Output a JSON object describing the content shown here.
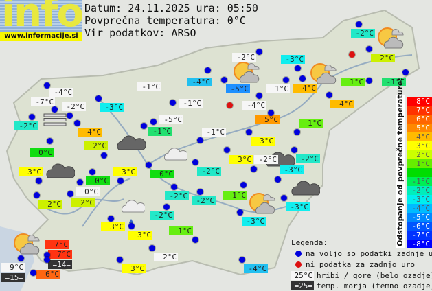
{
  "logo": {
    "word": "info",
    "url": "www.informacije.si"
  },
  "header": {
    "date_line": "Datum: 24.11.2025 ura: 05:50",
    "avg_line": "Povprečna temperatura: 0°C",
    "source_line": "Vir podatkov: ARSO"
  },
  "stations": [
    {
      "temp": "-2°C",
      "bg": "#22e8c8"
    },
    {
      "temp": "2°C",
      "bg": "#ccf000"
    },
    {
      "temp": "-2°C",
      "bg": "#f6f6f6"
    },
    {
      "temp": "-4°C",
      "bg": "#22c0f0"
    },
    {
      "temp": "-5°C",
      "bg": "#1e90ff"
    },
    {
      "temp": "-3°C",
      "bg": "#11eeee"
    },
    {
      "temp": "1°C",
      "bg": "#f6f6f6"
    },
    {
      "temp": "4°C",
      "bg": "#ffbb00"
    },
    {
      "temp": "4°C",
      "bg": "#ffbb00"
    },
    {
      "temp": "1°C",
      "bg": "#66ee11"
    },
    {
      "temp": "-1°C",
      "bg": "#22e070"
    },
    {
      "temp": "-4°C",
      "bg": "#f6f6f6"
    },
    {
      "temp": "5°C",
      "bg": "#ff9900"
    },
    {
      "temp": "1°C",
      "bg": "#66ee11"
    },
    {
      "temp": "-1°C",
      "bg": "#f6f6f6"
    },
    {
      "temp": "3°C",
      "bg": "#ffff00"
    },
    {
      "temp": "3°C",
      "bg": "#ffff00"
    },
    {
      "temp": "-2°C",
      "bg": "#f6f6f6"
    },
    {
      "temp": "-2°C",
      "bg": "#22e8c8"
    },
    {
      "temp": "-4°C",
      "bg": "#f6f6f6"
    },
    {
      "temp": "-7°C",
      "bg": "#f6f6f6"
    },
    {
      "temp": "-2°C",
      "bg": "#f6f6f6"
    },
    {
      "temp": "-3°C",
      "bg": "#11eeee"
    },
    {
      "temp": "-2°C",
      "bg": "#22e8c8"
    },
    {
      "temp": "4°C",
      "bg": "#ffbb00"
    },
    {
      "temp": "0°C",
      "bg": "#11dd11"
    },
    {
      "temp": "2°C",
      "bg": "#ccf000"
    },
    {
      "temp": "-1°C",
      "bg": "#f6f6f6"
    },
    {
      "temp": "-5°C",
      "bg": "#f6f6f6"
    },
    {
      "temp": "-1°C",
      "bg": "#22e070"
    },
    {
      "temp": "3°C",
      "bg": "#ffff00"
    },
    {
      "temp": "0°C",
      "bg": "#11dd11"
    },
    {
      "temp": "3°C",
      "bg": "#ffff00"
    },
    {
      "temp": "0°C",
      "bg": "#11dd11"
    },
    {
      "temp": "-2°C",
      "bg": "#22e8c8"
    },
    {
      "temp": "0°C",
      "bg": "#f6f6f6"
    },
    {
      "temp": "2°C",
      "bg": "#ccf000"
    },
    {
      "temp": "2°C",
      "bg": "#ccf000"
    },
    {
      "temp": "-2°C",
      "bg": "#22e8c8"
    },
    {
      "temp": "-2°C",
      "bg": "#22e8c8"
    },
    {
      "temp": "-3°C",
      "bg": "#11eeee"
    },
    {
      "temp": "1°C",
      "bg": "#66ee11"
    },
    {
      "temp": "-3°C",
      "bg": "#11eeee"
    },
    {
      "temp": "-3°C",
      "bg": "#11eeee"
    },
    {
      "temp": "-2°C",
      "bg": "#22e8c8"
    },
    {
      "temp": "3°C",
      "bg": "#ffff00"
    },
    {
      "temp": "3°C",
      "bg": "#ffff00"
    },
    {
      "temp": "1°C",
      "bg": "#66ee11"
    },
    {
      "temp": "2°C",
      "bg": "#f6f6f6"
    },
    {
      "temp": "7°C",
      "bg": "#ff3311"
    },
    {
      "temp": "7°C",
      "bg": "#ff3311"
    },
    {
      "temp": "=14=",
      "bg": "#333333"
    },
    {
      "temp": "9°C",
      "bg": "#f6f6f6"
    },
    {
      "temp": "=15=",
      "bg": "#333333"
    },
    {
      "temp": "6°C",
      "bg": "#ff6611"
    },
    {
      "temp": "3°C",
      "bg": "#ffff00"
    },
    {
      "temp": "-4°C",
      "bg": "#22c0f0"
    },
    {
      "temp": "-1°C",
      "bg": "#f6f6f6"
    }
  ],
  "weather_icons": [
    "sun-cloud",
    "sun-cloud",
    "sun-cloud",
    "sun-cloud",
    "sun-cloud",
    "dark-cloud",
    "dark-cloud",
    "dark-cloud",
    "dark-cloud",
    "light-cloud",
    "light-cloud",
    "fog",
    "rain-drop"
  ],
  "scale": {
    "title": "Odstopanje od povprečne temperature:",
    "rows": [
      {
        "label": "8°C",
        "color": "#ff0000"
      },
      {
        "label": "7°C",
        "color": "#ff3300"
      },
      {
        "label": "6°C",
        "color": "#ff6600"
      },
      {
        "label": "5°C",
        "color": "#ff8800"
      },
      {
        "label": "4°C",
        "color": "#ffbb00"
      },
      {
        "label": "3°C",
        "color": "#ffff00"
      },
      {
        "label": "2°C",
        "color": "#ccff00"
      },
      {
        "label": "1°C",
        "color": "#66ee00"
      },
      {
        "label": "",
        "color": "#00dd00"
      },
      {
        "label": "-1°C",
        "color": "#00ee55"
      },
      {
        "label": "-2°C",
        "color": "#00eebb"
      },
      {
        "label": "-3°C",
        "color": "#00eeee"
      },
      {
        "label": "-4°C",
        "color": "#00bbff"
      },
      {
        "label": "-5°C",
        "color": "#0088ff"
      },
      {
        "label": "-6°C",
        "color": "#0055ff"
      },
      {
        "label": "-7°C",
        "color": "#0033ff"
      },
      {
        "label": "-8°C",
        "color": "#0000ff"
      }
    ]
  },
  "legend": {
    "title": "Legenda:",
    "available": "na voljo so podatki zadnje ure",
    "no_data": "ni podatka za zadnjo uro",
    "mountain_sample": "25°C",
    "mountain_text": "hribi / gore (belo ozadje)",
    "sea_sample": "=25=",
    "sea_text": "temp. morja (temno ozadje)",
    "available_color": "#0000dd",
    "no_data_color": "#dd1111"
  }
}
